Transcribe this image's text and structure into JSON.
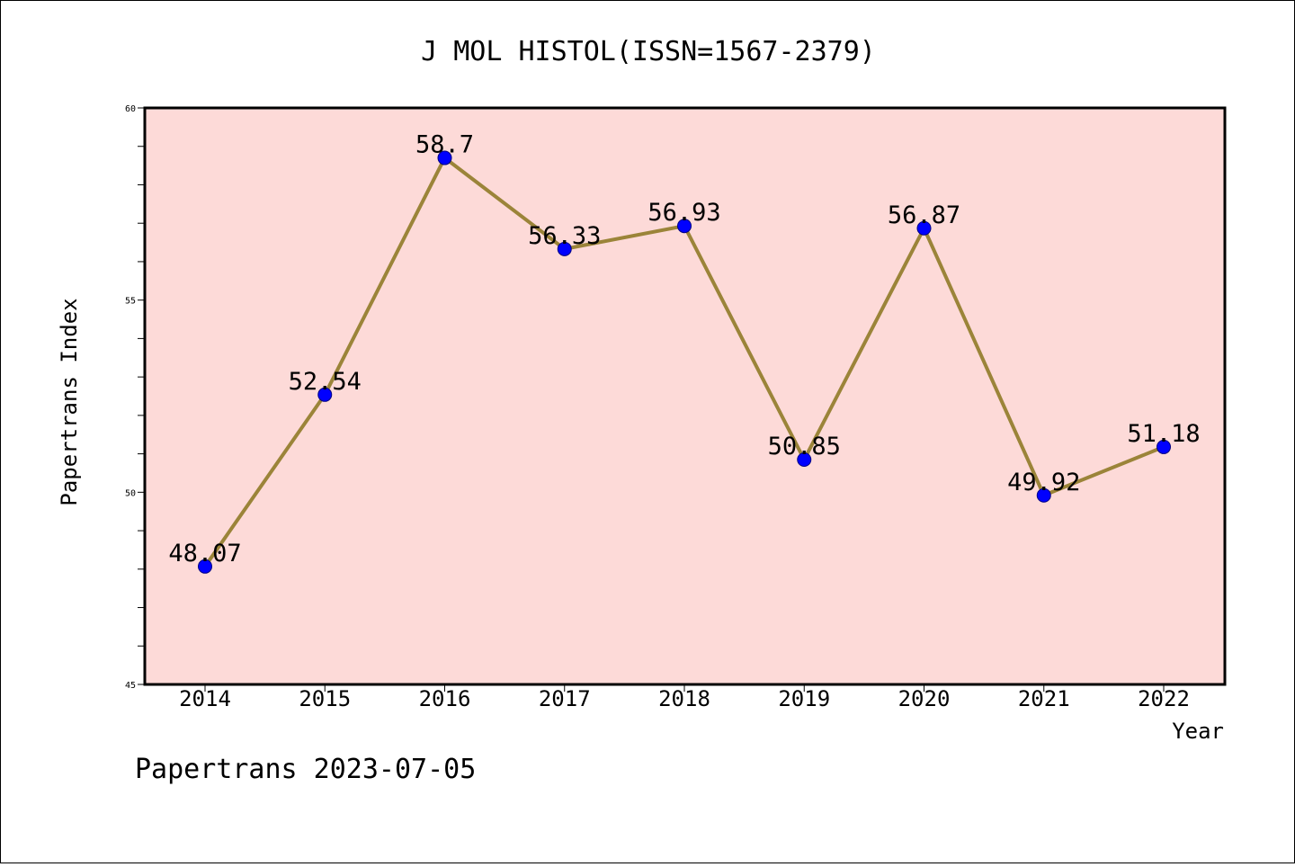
{
  "chart_data": {
    "type": "line",
    "title": "J MOL HISTOL(ISSN=1567-2379)",
    "xlabel": "Year",
    "ylabel": "Papertrans Index",
    "categories": [
      "2014",
      "2015",
      "2016",
      "2017",
      "2018",
      "2019",
      "2020",
      "2021",
      "2022"
    ],
    "values": [
      48.07,
      52.54,
      58.7,
      56.33,
      56.93,
      50.85,
      56.87,
      49.92,
      51.18
    ],
    "data_labels": [
      "48.07",
      "52.54",
      "58.7",
      "56.33",
      "56.93",
      "50.85",
      "56.87",
      "49.92",
      "51.18"
    ],
    "ylim": [
      45,
      60
    ],
    "yticks": [
      "45",
      "50",
      "55",
      "60"
    ],
    "y_minor_step": 1,
    "grid": false,
    "legend": "none",
    "colors": {
      "plot_background": "#FDDAD8",
      "line": "#9B8439",
      "marker_fill": "#0000FF",
      "marker_edge": "#000080"
    }
  },
  "footer": {
    "text": "Papertrans 2023-07-05"
  }
}
